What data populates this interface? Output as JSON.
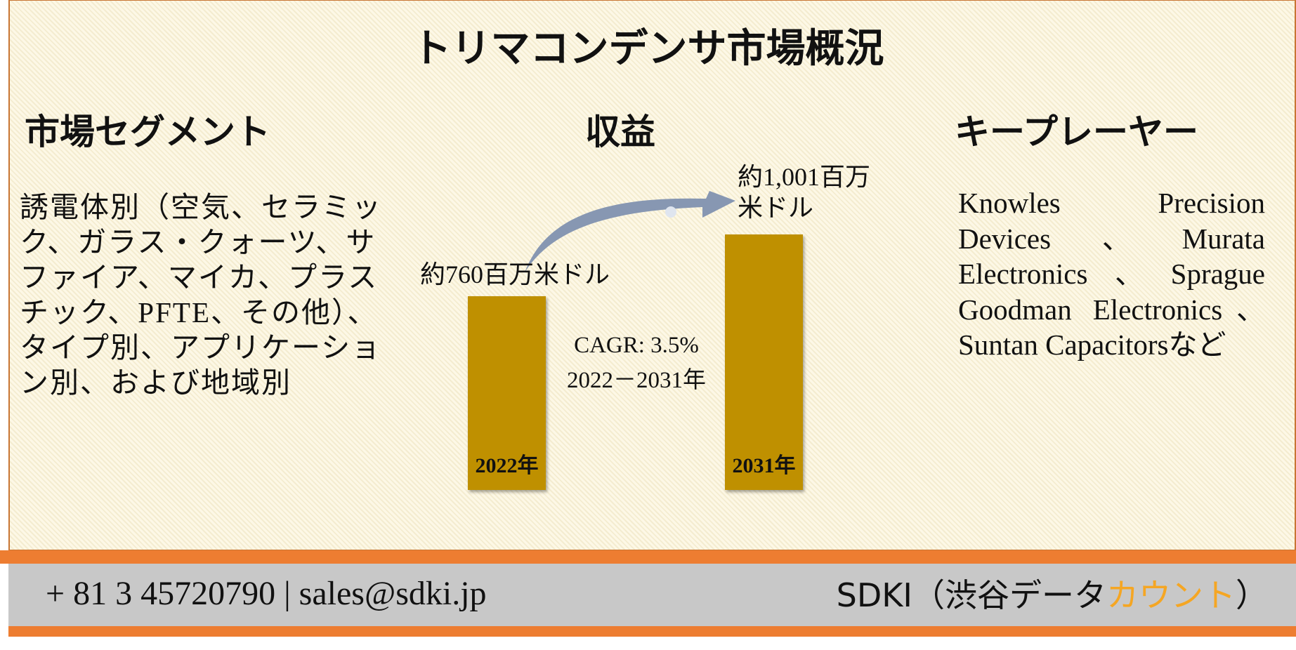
{
  "title": "トリマコンデンサ市場概況",
  "segments": {
    "heading": "市場セグメント",
    "text": "誘電体別（空気、セラミック、ガラス・クォーツ、サファイア、マイカ、プラスチック、PFTE、その他）、タイプ別、アプリケーション別、および地域別"
  },
  "revenue": {
    "heading": "収益",
    "chart_data": {
      "type": "bar",
      "categories": [
        "2022年",
        "2031年"
      ],
      "values": [
        760,
        1001
      ],
      "value_labels": [
        "約760百万米ドル",
        "約1,001百万米ドル"
      ],
      "color": "#bf9000",
      "annotations": [
        "CAGR: 3.5%",
        "2022－2031年"
      ]
    }
  },
  "players": {
    "heading": "キープレーヤー",
    "text": "Knowles Precision Devices、Murata Electronics、Sprague Goodman Electronics、Suntan Capacitorsなど"
  },
  "footer": {
    "contact": "+ 81 3 45720790 | sales@sdki.jp",
    "brand": [
      "SDKI（渋谷データ",
      "カウント",
      "）"
    ]
  }
}
